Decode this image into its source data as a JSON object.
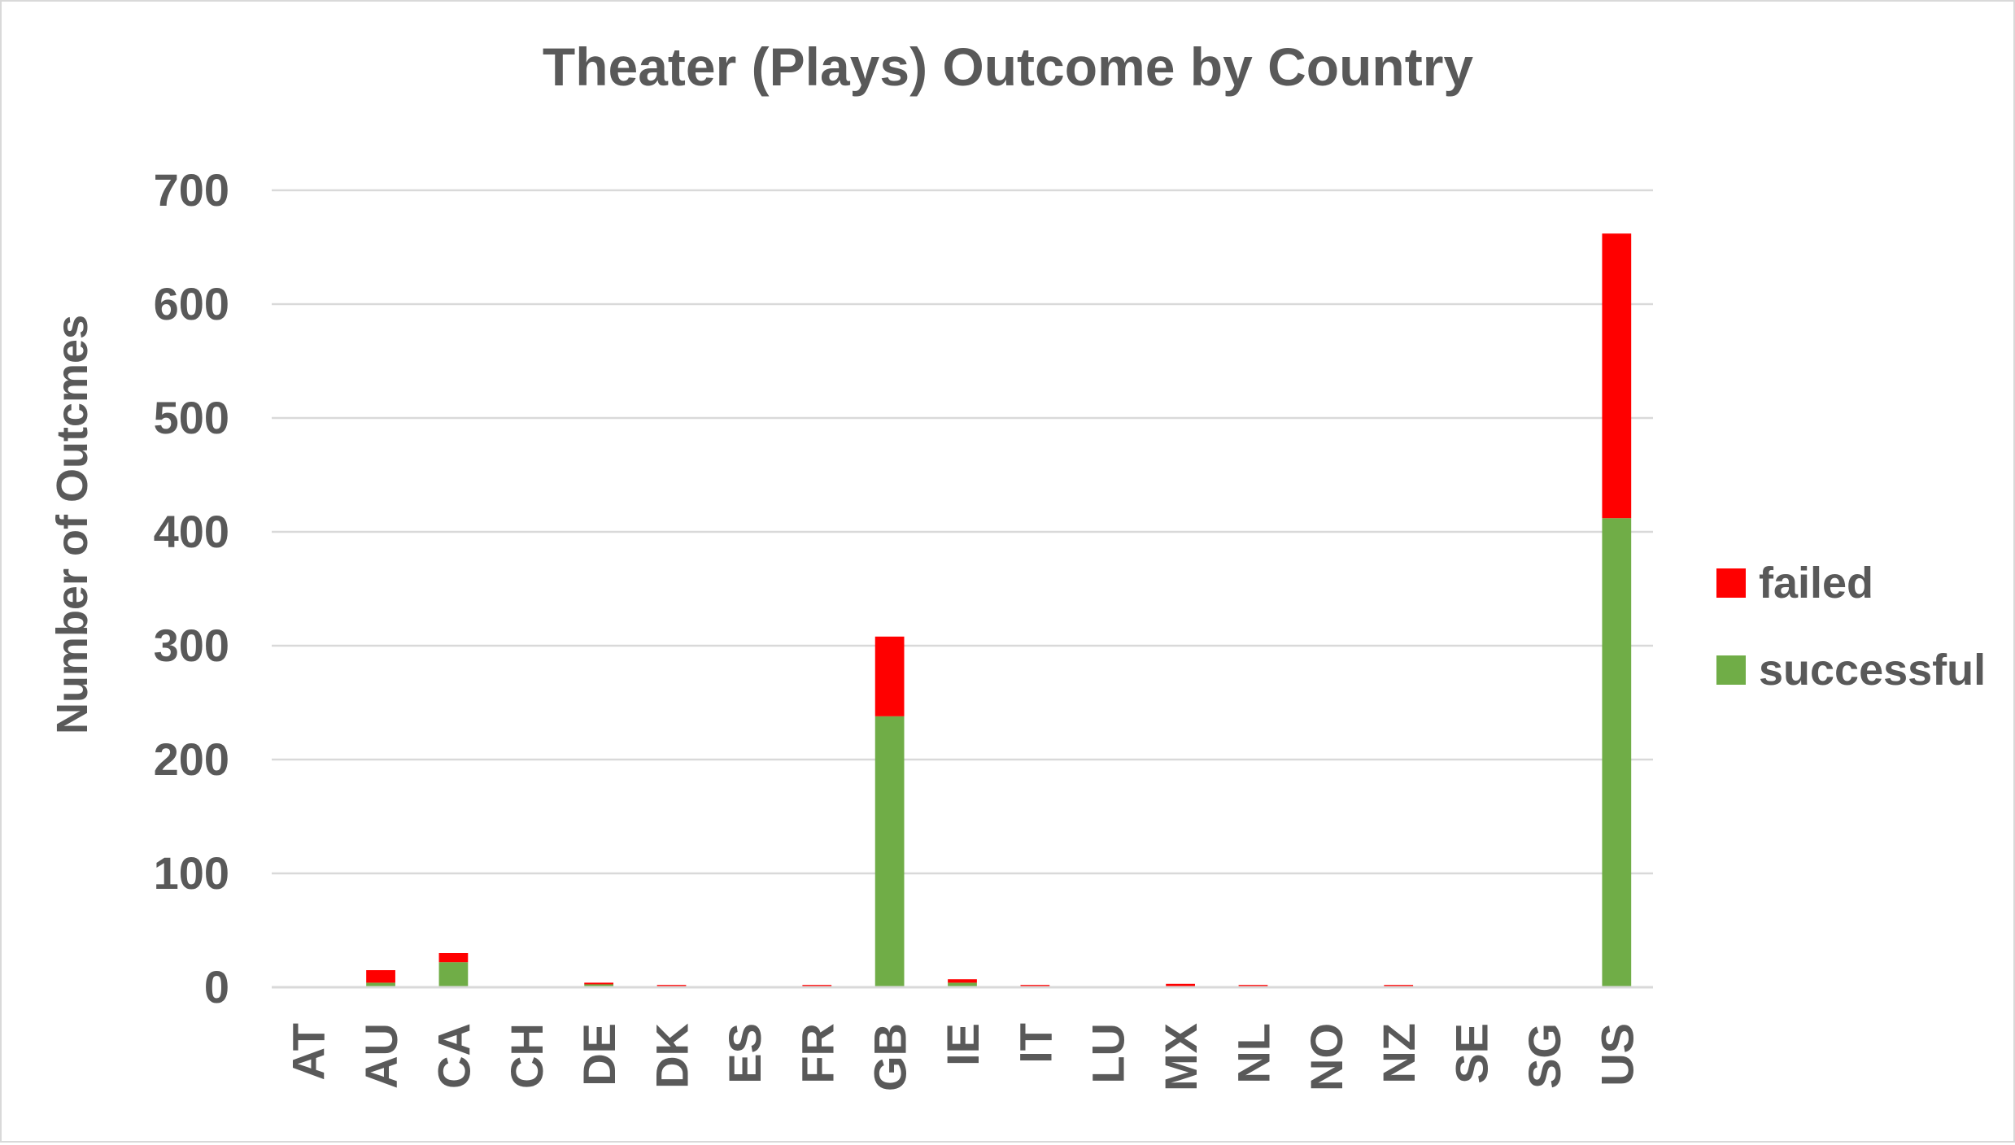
{
  "chart_data": {
    "type": "bar",
    "stacked": true,
    "title": "Theater (Plays) Outcome by Country",
    "xlabel": "",
    "ylabel": "Number of Outcmes",
    "ylim": [
      0,
      700
    ],
    "yticks": [
      0,
      100,
      200,
      300,
      400,
      500,
      600,
      700
    ],
    "grid": true,
    "legend": "right",
    "categories": [
      "AT",
      "AU",
      "CA",
      "CH",
      "DE",
      "DK",
      "ES",
      "FR",
      "GB",
      "IE",
      "IT",
      "LU",
      "MX",
      "NL",
      "NO",
      "NZ",
      "SE",
      "SG",
      "US"
    ],
    "series": [
      {
        "name": "successful",
        "color": "#70ad47",
        "values": [
          0,
          4,
          22,
          0,
          3,
          0,
          0,
          0,
          238,
          4,
          0,
          0,
          0,
          0,
          0,
          0,
          0,
          0,
          412
        ]
      },
      {
        "name": "failed",
        "color": "#ff0000",
        "values": [
          0,
          11,
          8,
          0,
          1,
          2,
          0,
          2,
          70,
          3,
          2,
          0,
          3,
          2,
          0,
          2,
          0,
          0,
          250
        ]
      }
    ],
    "legend_order": [
      "failed",
      "successful"
    ]
  }
}
